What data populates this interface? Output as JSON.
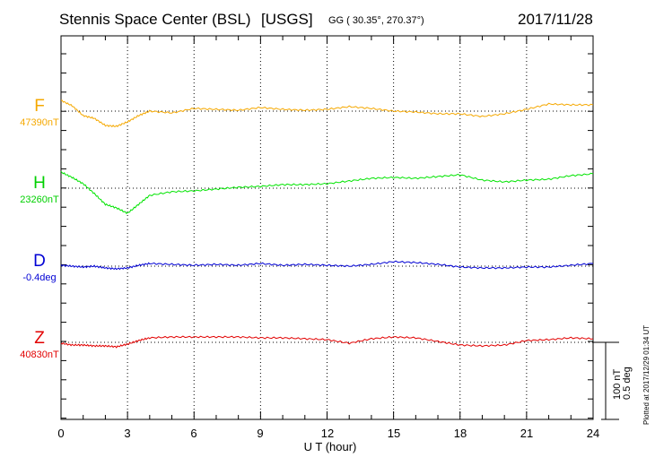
{
  "header": {
    "station": "Stennis Space Center (BSL)",
    "network": "[USGS]",
    "coords": "GG ( 30.35°, 270.37°)",
    "date": "2017/11/28"
  },
  "scale_label_1": "100 nT",
  "scale_label_2": "0.5 deg",
  "plotted_note": "Plotted at 2017/12/29 01:34 UT",
  "chart_data": {
    "type": "line",
    "title": "Stennis Space Center (BSL)  [USGS]",
    "xlabel": "U T (hour)",
    "xlim": [
      0,
      24
    ],
    "xticks": [
      "0",
      "3",
      "6",
      "9",
      "12",
      "15",
      "18",
      "21",
      "24"
    ],
    "grid": true,
    "scale": "100 nT / 0.5 deg per scale bar",
    "series": [
      {
        "name": "F",
        "baseline_label": "47390nT",
        "color": "#f5a800",
        "x": [
          0,
          0.5,
          1,
          1.5,
          2,
          2.5,
          3,
          3.5,
          4,
          5,
          6,
          7,
          8,
          9,
          10,
          11,
          12,
          13,
          14,
          15,
          16,
          17,
          18,
          19,
          20,
          21,
          22,
          23,
          24
        ],
        "y": [
          12,
          6,
          -5,
          -8,
          -16,
          -17,
          -12,
          -5,
          0,
          -2,
          3,
          2,
          1,
          4,
          2,
          1,
          2,
          5,
          3,
          0,
          -1,
          -3,
          -3,
          -6,
          -3,
          2,
          8,
          7,
          7
        ]
      },
      {
        "name": "H",
        "baseline_label": "23260nT",
        "color": "#00e400",
        "x": [
          0,
          0.5,
          1,
          1.5,
          2,
          2.5,
          3,
          3.5,
          4,
          5,
          6,
          7,
          8,
          9,
          10,
          11,
          12,
          13,
          14,
          15,
          16,
          17,
          18,
          19,
          20,
          21,
          22,
          23,
          24
        ],
        "y": [
          18,
          12,
          5,
          -6,
          -18,
          -22,
          -28,
          -18,
          -8,
          -4,
          -3,
          -1,
          1,
          2,
          4,
          4,
          5,
          8,
          11,
          12,
          11,
          13,
          15,
          9,
          7,
          9,
          10,
          14,
          16
        ]
      },
      {
        "name": "D",
        "baseline_label": "-0.4deg",
        "color": "#0000d4",
        "x": [
          0,
          0.5,
          1,
          1.5,
          2,
          2.5,
          3,
          3.5,
          4,
          5,
          6,
          7,
          8,
          9,
          10,
          11,
          12,
          13,
          14,
          15,
          16,
          17,
          18,
          19,
          20,
          21,
          22,
          23,
          24
        ],
        "y": [
          1,
          0,
          -1,
          0,
          -2,
          -3,
          -2,
          1,
          3,
          2,
          1,
          2,
          1,
          3,
          1,
          2,
          1,
          0,
          2,
          5,
          4,
          2,
          -1,
          -2,
          -2,
          -1,
          -1,
          1,
          3
        ]
      },
      {
        "name": "Z",
        "baseline_label": "40830nT",
        "color": "#e20000",
        "x": [
          0,
          0.5,
          1,
          1.5,
          2,
          2.5,
          3,
          3.5,
          4,
          5,
          6,
          7,
          8,
          9,
          10,
          11,
          12,
          13,
          14,
          15,
          16,
          17,
          18,
          19,
          20,
          21,
          22,
          23,
          24
        ],
        "y": [
          -1,
          -3,
          -3,
          -4,
          -4,
          -5,
          -2,
          2,
          5,
          6,
          6,
          6,
          6,
          5,
          5,
          4,
          3,
          -1,
          4,
          6,
          5,
          1,
          -3,
          -4,
          -3,
          2,
          3,
          5,
          4
        ]
      }
    ]
  }
}
